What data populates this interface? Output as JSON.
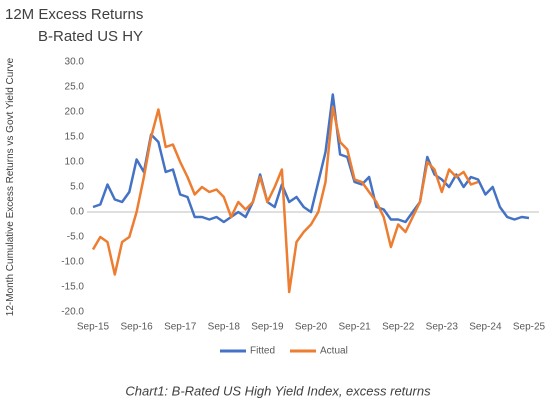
{
  "chart_data": {
    "type": "line",
    "title": "12M Excess Returns",
    "subtitle": "B-Rated US HY",
    "y_label": "12-Month Cumulative Excess Returns vs Govt Yield Curve",
    "caption": "Chart1: B-Rated US High Yield Index, excess returns",
    "categories": [
      "Sep-15",
      null,
      null,
      null,
      null,
      null,
      "Sep-16",
      null,
      null,
      null,
      null,
      null,
      "Sep-17",
      null,
      null,
      null,
      null,
      null,
      "Sep-18",
      null,
      null,
      null,
      null,
      null,
      "Sep-19",
      null,
      null,
      null,
      null,
      null,
      "Sep-20",
      null,
      null,
      null,
      null,
      null,
      "Sep-21",
      null,
      null,
      null,
      null,
      null,
      "Sep-22",
      null,
      null,
      null,
      null,
      null,
      "Sep-23",
      null,
      null,
      null,
      null,
      null,
      "Sep-24",
      null,
      null,
      null,
      null,
      null,
      "Sep-25"
    ],
    "series": [
      {
        "name": "Fitted",
        "color": "#4472c4",
        "values": [
          1,
          1.5,
          5.5,
          2.5,
          2,
          4,
          10.5,
          8,
          15.5,
          14,
          8,
          8.5,
          3.5,
          3,
          -1,
          -1,
          -1.5,
          -1,
          -2,
          -1,
          0,
          -1,
          2,
          7.5,
          2,
          1,
          5.5,
          2,
          3,
          1,
          0,
          6,
          12,
          23.5,
          11.5,
          11,
          6,
          5.5,
          7,
          1,
          0.5,
          -1.5,
          -1.5,
          -2,
          0,
          2,
          11,
          7.5,
          6.5,
          5,
          7.5,
          5,
          7,
          6.5,
          3.5,
          5,
          1,
          -1,
          -1.5,
          -1,
          -1.2
        ]
      },
      {
        "name": "Actual",
        "color": "#ed7d31",
        "values": [
          -7.5,
          -5,
          -6,
          -12.5,
          -6,
          -5,
          0,
          7,
          15,
          20.5,
          13,
          13.5,
          10,
          7,
          3.5,
          5,
          4,
          4.5,
          3,
          -1,
          2,
          0.5,
          2,
          7,
          2,
          5,
          8.5,
          -16,
          -6,
          -4,
          -2.5,
          0,
          6,
          21,
          14,
          12.5,
          6.5,
          6,
          4,
          2,
          -1,
          -7,
          -2.5,
          -4,
          -1,
          2,
          10,
          8.5,
          4,
          8.5,
          7,
          8,
          5.5,
          6,
          null,
          null,
          null,
          null,
          null,
          null,
          null
        ]
      }
    ],
    "ylim": [
      -20,
      30
    ],
    "yticks": [
      {
        "value": 30,
        "label": "30.0"
      },
      {
        "value": 25,
        "label": "25.0"
      },
      {
        "value": 20,
        "label": "20.0"
      },
      {
        "value": 15,
        "label": "15.0"
      },
      {
        "value": 10,
        "label": "10.0"
      },
      {
        "value": 5,
        "label": "5.0"
      },
      {
        "value": 0,
        "label": "0.0"
      },
      {
        "value": -5,
        "label": "-5.0"
      },
      {
        "value": -10,
        "label": "-10.0"
      },
      {
        "value": -15,
        "label": "-15.0"
      },
      {
        "value": -20,
        "label": "-20.0"
      }
    ],
    "grid": false,
    "legend": "bottom"
  }
}
